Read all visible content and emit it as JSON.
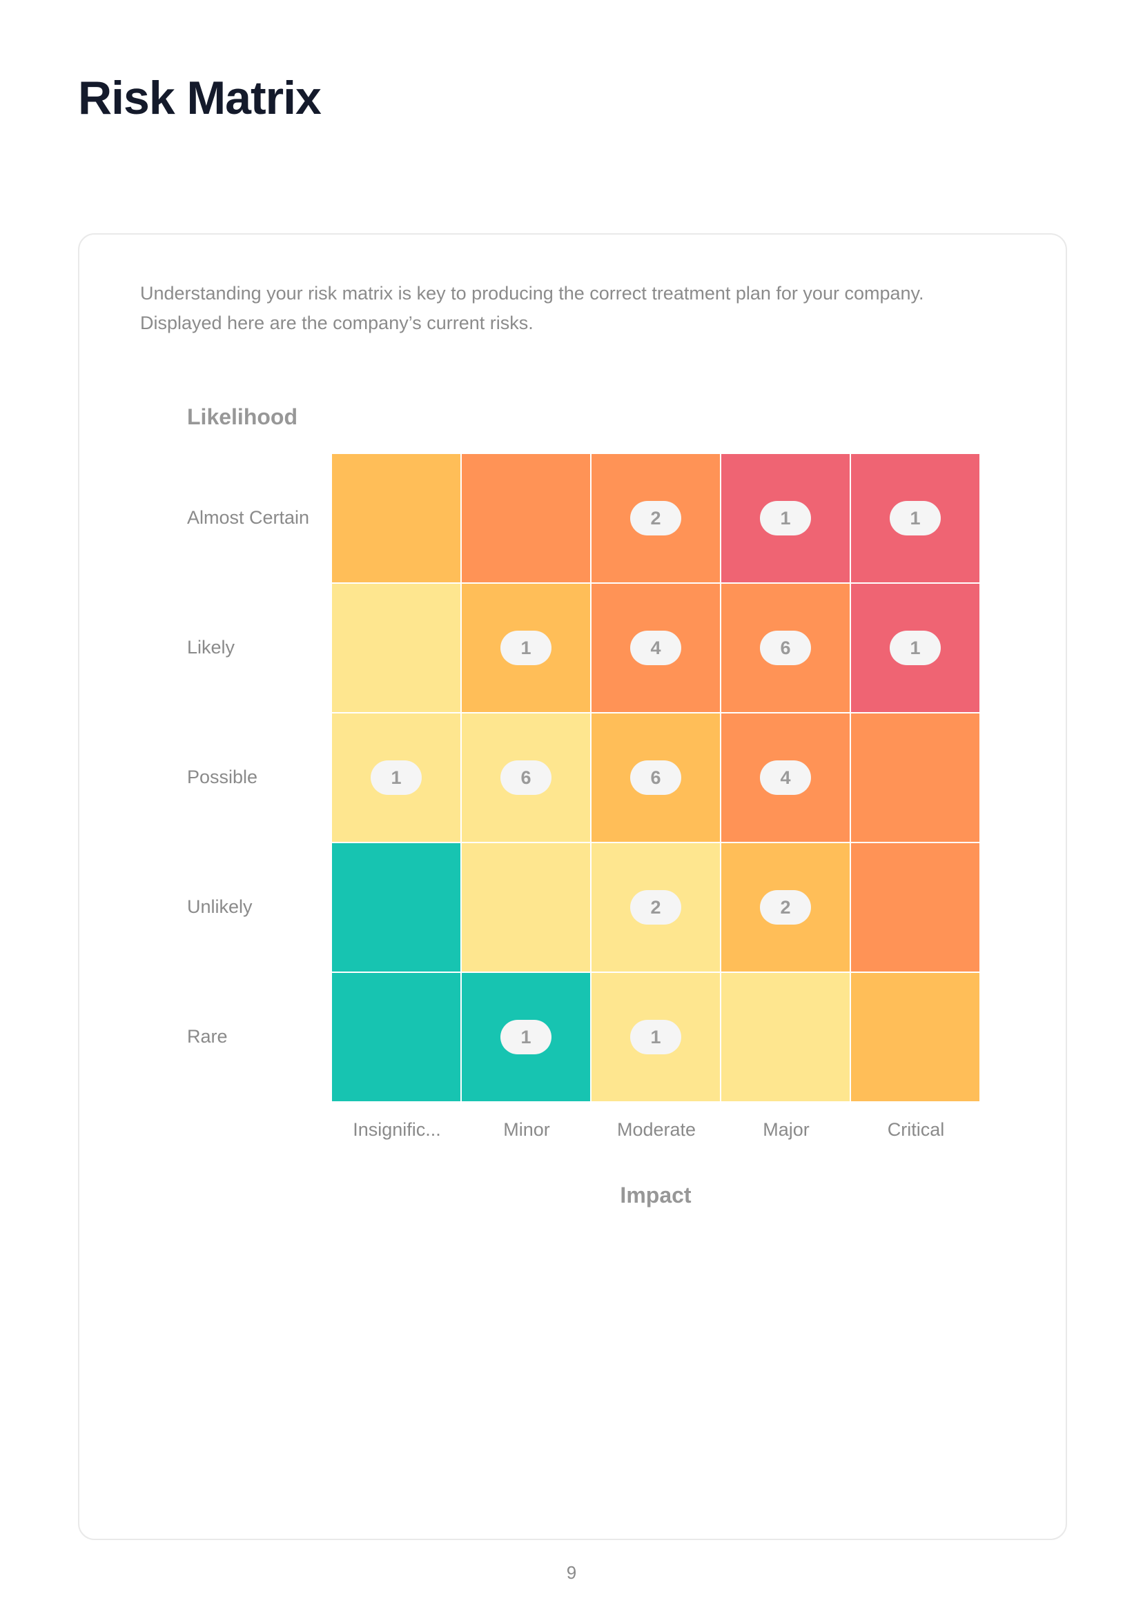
{
  "page": {
    "title": "Risk Matrix",
    "number": "9"
  },
  "card": {
    "intro_lines": [
      "Understanding your risk matrix is key to producing the correct treatment plan for your company.",
      "Displayed here are the company’s current risks."
    ]
  },
  "colors": {
    "green": "#17c4b1",
    "yellow": "#fee68f",
    "amber": "#ffbe58",
    "orange": "#ff9356",
    "red": "#ef6473"
  },
  "matrix": {
    "y_axis_title": "Likelihood",
    "x_axis_title": "Impact",
    "rows": [
      "Almost Certain",
      "Likely",
      "Possible",
      "Unlikely",
      "Rare"
    ],
    "columns": [
      "Insignific...",
      "Minor",
      "Moderate",
      "Major",
      "Critical"
    ],
    "cell_levels": [
      [
        "amber",
        "orange",
        "orange",
        "red",
        "red"
      ],
      [
        "yellow",
        "amber",
        "orange",
        "orange",
        "red"
      ],
      [
        "yellow",
        "yellow",
        "amber",
        "orange",
        "orange"
      ],
      [
        "green",
        "yellow",
        "yellow",
        "amber",
        "orange"
      ],
      [
        "green",
        "green",
        "yellow",
        "yellow",
        "amber"
      ]
    ],
    "counts": [
      [
        "",
        "",
        "2",
        "1",
        "1"
      ],
      [
        "",
        "1",
        "4",
        "6",
        "1"
      ],
      [
        "1",
        "6",
        "6",
        "4",
        ""
      ],
      [
        "",
        "",
        "2",
        "2",
        ""
      ],
      [
        "",
        "1",
        "1",
        "",
        ""
      ]
    ]
  }
}
